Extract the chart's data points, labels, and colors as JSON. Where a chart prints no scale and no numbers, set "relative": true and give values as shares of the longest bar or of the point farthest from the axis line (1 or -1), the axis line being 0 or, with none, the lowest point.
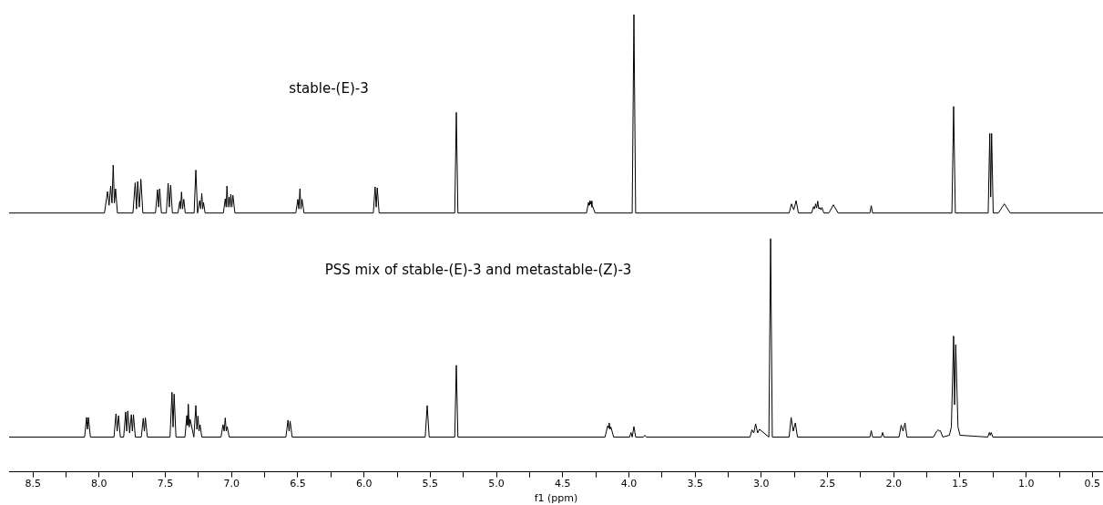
{
  "chart_data": {
    "type": "line",
    "relative": true,
    "annotations": [
      "stable-(E)-3",
      "PSS mix of stable-(E)-3 and metastable-(Z)-3"
    ],
    "xlabel": "f1 (ppm)",
    "xlim": [
      8.68,
      0.42
    ],
    "legend": false,
    "marker": "none",
    "line_style": "solid",
    "xticks": [
      {
        "value": 8.5,
        "label": "8.5"
      },
      {
        "value": 8.25,
        "label": null
      },
      {
        "value": 8,
        "label": "8.0"
      },
      {
        "value": 7.75,
        "label": null
      },
      {
        "value": 7.5,
        "label": "7.5"
      },
      {
        "value": 7.25,
        "label": null
      },
      {
        "value": 7,
        "label": "7.0"
      },
      {
        "value": 6.75,
        "label": null
      },
      {
        "value": 6.5,
        "label": "6.5"
      },
      {
        "value": 6.25,
        "label": null
      },
      {
        "value": 6,
        "label": "6.0"
      },
      {
        "value": 5.75,
        "label": null
      },
      {
        "value": 5.5,
        "label": "5.5"
      },
      {
        "value": 5.25,
        "label": null
      },
      {
        "value": 5,
        "label": "5.0"
      },
      {
        "value": 4.75,
        "label": null
      },
      {
        "value": 4.5,
        "label": "4.5"
      },
      {
        "value": 4.25,
        "label": null
      },
      {
        "value": 4,
        "label": "4.0"
      },
      {
        "value": 3.75,
        "label": null
      },
      {
        "value": 3.5,
        "label": "3.5"
      },
      {
        "value": 3.25,
        "label": null
      },
      {
        "value": 3,
        "label": "3.0"
      },
      {
        "value": 2.75,
        "label": null
      },
      {
        "value": 2.5,
        "label": "2.5"
      },
      {
        "value": 2.25,
        "label": null
      },
      {
        "value": 2,
        "label": "2.0"
      },
      {
        "value": 1.75,
        "label": null
      },
      {
        "value": 1.5,
        "label": "1.5"
      },
      {
        "value": 1.25,
        "label": null
      },
      {
        "value": 1,
        "label": "1.0"
      },
      {
        "value": 0.75,
        "label": null
      },
      {
        "value": 0.5,
        "label": "0.5"
      }
    ],
    "series": [
      {
        "color": "#000000",
        "x": [
          8.68,
          7.96,
          7.937,
          7.925,
          7.913,
          7.903,
          7.894,
          7.885,
          7.876,
          7.862,
          7.745,
          7.728,
          7.718,
          7.709,
          7.697,
          7.685,
          7.67,
          7.575,
          7.559,
          7.551,
          7.543,
          7.53,
          7.493,
          7.479,
          7.47,
          7.46,
          7.447,
          7.405,
          7.391,
          7.385,
          7.378,
          7.37,
          7.361,
          7.35,
          7.283,
          7.27,
          7.257,
          7.241,
          7.233,
          7.225,
          7.218,
          7.212,
          7.2,
          7.062,
          7.048,
          7.041,
          7.035,
          7.027,
          7.019,
          7.012,
          7.006,
          6.998,
          6.99,
          6.975,
          6.515,
          6.5,
          6.492,
          6.484,
          6.476,
          6.468,
          6.453,
          5.93,
          5.916,
          5.908,
          5.9,
          5.886,
          5.315,
          5.303,
          5.291,
          4.32,
          4.305,
          4.299,
          4.294,
          4.289,
          4.284,
          4.279,
          4.273,
          4.255,
          3.975,
          3.962,
          3.949,
          2.79,
          2.772,
          2.755,
          2.737,
          2.72,
          2.62,
          2.606,
          2.598,
          2.59,
          2.582,
          2.574,
          2.566,
          2.558,
          2.55,
          2.542,
          2.528,
          2.49,
          2.456,
          2.42,
          2.18,
          2.17,
          2.16,
          1.561,
          1.548,
          1.535,
          1.287,
          1.275,
          1.268,
          1.261,
          1.249,
          1.21,
          1.165,
          1.12,
          0.42
        ],
        "values": [
          0.566,
          0.566,
          0.613,
          0.583,
          0.625,
          0.588,
          0.671,
          0.588,
          0.619,
          0.566,
          0.566,
          0.632,
          0.575,
          0.635,
          0.579,
          0.64,
          0.566,
          0.566,
          0.617,
          0.579,
          0.619,
          0.566,
          0.566,
          0.631,
          0.579,
          0.627,
          0.566,
          0.566,
          0.592,
          0.575,
          0.612,
          0.575,
          0.596,
          0.566,
          0.566,
          0.66,
          0.566,
          0.593,
          0.575,
          0.609,
          0.575,
          0.589,
          0.566,
          0.566,
          0.597,
          0.579,
          0.625,
          0.579,
          0.601,
          0.579,
          0.607,
          0.579,
          0.605,
          0.566,
          0.566,
          0.596,
          0.575,
          0.619,
          0.575,
          0.596,
          0.566,
          0.566,
          0.623,
          0.579,
          0.621,
          0.566,
          0.566,
          0.786,
          0.566,
          0.566,
          0.589,
          0.583,
          0.593,
          0.586,
          0.592,
          0.579,
          0.58,
          0.566,
          0.566,
          1,
          0.566,
          0.566,
          0.586,
          0.573,
          0.593,
          0.566,
          0.566,
          0.58,
          0.575,
          0.586,
          0.577,
          0.592,
          0.575,
          0.578,
          0.573,
          0.578,
          0.566,
          0.566,
          0.584,
          0.566,
          0.566,
          0.582,
          0.566,
          0.566,
          0.799,
          0.566,
          0.566,
          0.74,
          0.601,
          0.74,
          0.566,
          0.566,
          0.586,
          0.566,
          0.566
        ]
      },
      {
        "color": "#000000",
        "x": [
          8.68,
          8.11,
          8.095,
          8.088,
          8.081,
          8.066,
          7.888,
          7.873,
          7.864,
          7.854,
          7.84,
          7.815,
          7.8,
          7.792,
          7.784,
          7.77,
          7.757,
          7.749,
          7.741,
          7.727,
          7.682,
          7.667,
          7.659,
          7.651,
          7.636,
          7.465,
          7.45,
          7.442,
          7.434,
          7.42,
          7.352,
          7.338,
          7.333,
          7.327,
          7.32,
          7.313,
          7.285,
          7.27,
          7.262,
          7.254,
          7.246,
          7.238,
          7.225,
          7.08,
          7.065,
          7.056,
          7.048,
          7.04,
          7.033,
          7.018,
          6.59,
          6.574,
          6.566,
          6.558,
          6.543,
          5.538,
          5.523,
          5.508,
          5.315,
          5.303,
          5.291,
          4.18,
          4.16,
          4.154,
          4.149,
          4.142,
          4.136,
          4.115,
          3.995,
          3.984,
          3.975,
          3.962,
          3.949,
          3.89,
          3.879,
          3.868,
          3.085,
          3.071,
          3.057,
          3.043,
          3.028,
          3.014,
          2.943,
          2.93,
          2.917,
          2.79,
          2.775,
          2.759,
          2.743,
          2.727,
          2.18,
          2.17,
          2.16,
          2.094,
          2.084,
          2.074,
          1.96,
          1.944,
          1.93,
          1.915,
          1.9,
          1.7,
          1.685,
          1.675,
          1.664,
          1.656,
          1.648,
          1.63,
          1.58,
          1.565,
          1.548,
          1.541,
          1.532,
          1.515,
          1.5,
          1.29,
          1.278,
          1.271,
          1.264,
          1.252,
          0.42
        ],
        "values": [
          0.076,
          0.076,
          0.119,
          0.093,
          0.119,
          0.076,
          0.076,
          0.127,
          0.089,
          0.123,
          0.076,
          0.076,
          0.131,
          0.089,
          0.133,
          0.085,
          0.125,
          0.089,
          0.125,
          0.076,
          0.076,
          0.117,
          0.089,
          0.118,
          0.076,
          0.076,
          0.174,
          0.098,
          0.17,
          0.076,
          0.076,
          0.123,
          0.102,
          0.148,
          0.098,
          0.115,
          0.076,
          0.145,
          0.093,
          0.122,
          0.089,
          0.103,
          0.076,
          0.076,
          0.103,
          0.089,
          0.118,
          0.089,
          0.099,
          0.076,
          0.076,
          0.113,
          0.089,
          0.111,
          0.076,
          0.076,
          0.145,
          0.076,
          0.076,
          0.233,
          0.076,
          0.076,
          0.101,
          0.096,
          0.107,
          0.093,
          0.098,
          0.076,
          0.076,
          0.086,
          0.076,
          0.099,
          0.076,
          0.076,
          0.08,
          0.076,
          0.076,
          0.092,
          0.085,
          0.105,
          0.085,
          0.093,
          0.076,
          0.51,
          0.076,
          0.076,
          0.119,
          0.089,
          0.107,
          0.076,
          0.076,
          0.09,
          0.076,
          0.076,
          0.086,
          0.076,
          0.076,
          0.102,
          0.089,
          0.107,
          0.076,
          0.076,
          0.084,
          0.089,
          0.092,
          0.089,
          0.09,
          0.076,
          0.08,
          0.098,
          0.297,
          0.147,
          0.278,
          0.098,
          0.08,
          0.076,
          0.086,
          0.08,
          0.086,
          0.076,
          0.076
        ]
      }
    ]
  }
}
